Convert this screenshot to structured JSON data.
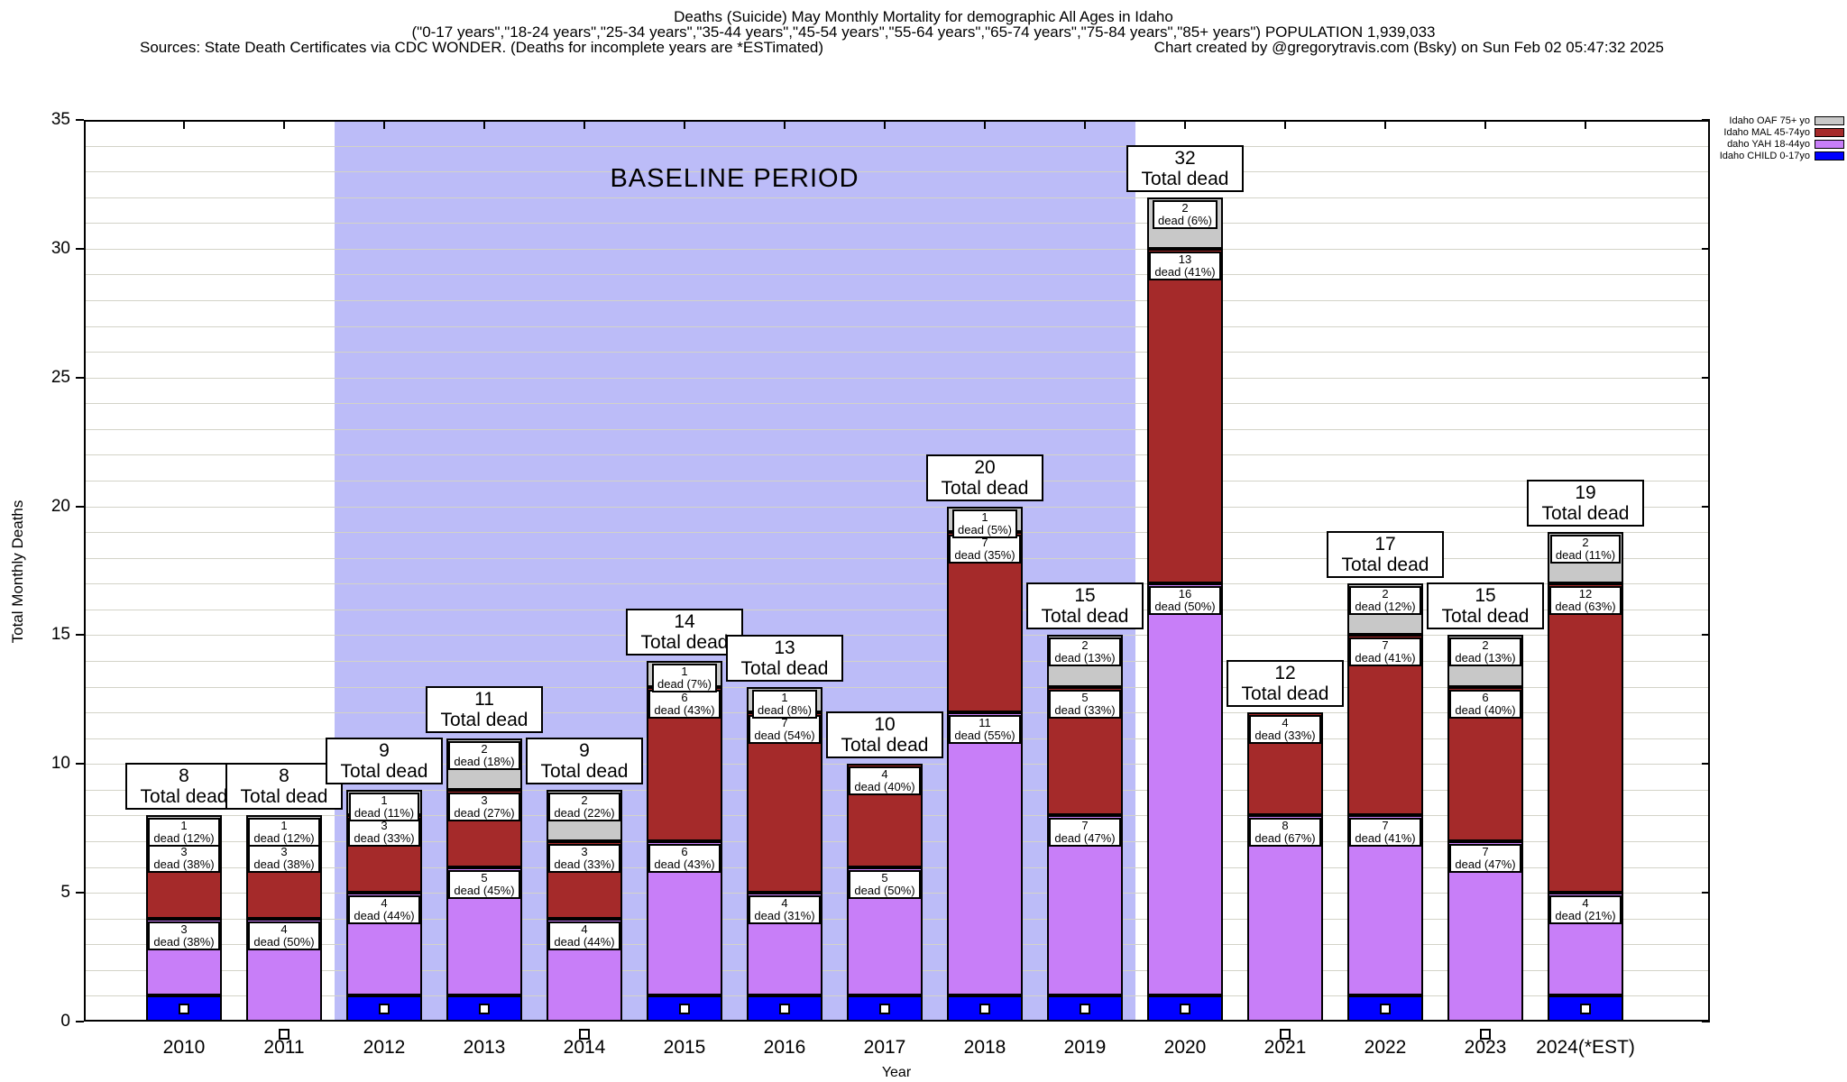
{
  "title": {
    "line1": "Deaths (Suicide) May Monthly Mortality for demographic All Ages in Idaho",
    "line2": "(\"0-17 years\",\"18-24 years\",\"25-34 years\",\"35-44 years\",\"45-54 years\",\"55-64 years\",\"65-74 years\",\"75-84 years\",\"85+ years\") POPULATION 1,939,033",
    "sources": "Sources: State Death Certificates via CDC WONDER. (Deaths for incomplete years are *ESTimated)",
    "credit": "Chart created by @gregorytravis.com (Bsky) on Sun Feb 02 05:47:32 2025"
  },
  "legend": {
    "items": [
      {
        "label": "Idaho OAF 75+ yo",
        "color": "#c8c8c8"
      },
      {
        "label": "Idaho MAL 45-74yo",
        "color": "#a52a2a"
      },
      {
        "label": "daho YAH 18-44yo",
        "color": "#c87ef8"
      },
      {
        "label": "Idaho CHILD 0-17yo",
        "color": "#0000ff"
      }
    ]
  },
  "baseline": {
    "label": "BASELINE PERIOD",
    "color": "#bcbcf8",
    "from": "2012",
    "to": "2019"
  },
  "chart_data": {
    "type": "bar",
    "stacked": true,
    "title": "Deaths (Suicide) May Monthly Mortality for demographic All Ages in Idaho",
    "xlabel": "Year",
    "ylabel": "Total Monthly Deaths",
    "ylim": [
      0,
      35
    ],
    "ytick_interval": 5,
    "yticks": [
      0,
      5,
      10,
      15,
      20,
      25,
      30,
      35
    ],
    "grid": "horizontal-minor-every-1",
    "legend_position": "top-right-outside",
    "categories": [
      "2010",
      "2011",
      "2012",
      "2013",
      "2014",
      "2015",
      "2016",
      "2017",
      "2018",
      "2019",
      "2020",
      "2021",
      "2022",
      "2023",
      "2024(*EST)"
    ],
    "totals": [
      8,
      8,
      9,
      11,
      9,
      14,
      13,
      10,
      20,
      15,
      32,
      12,
      17,
      15,
      19
    ],
    "total_label_suffix": "Total dead",
    "segment_label_word": "dead",
    "series": [
      {
        "name": "Idaho CHILD 0-17yo",
        "color": "#0000ff",
        "show_labels": false,
        "marker": "white-square",
        "values": [
          1,
          0,
          1,
          1,
          0,
          1,
          1,
          1,
          1,
          1,
          1,
          0,
          1,
          0,
          1
        ],
        "pcts": [
          null,
          null,
          null,
          null,
          null,
          null,
          null,
          null,
          null,
          null,
          null,
          null,
          null,
          null,
          null
        ]
      },
      {
        "name": "daho YAH 18-44yo",
        "color": "#c87ef8",
        "show_labels": true,
        "values": [
          3,
          4,
          4,
          5,
          4,
          6,
          4,
          5,
          11,
          7,
          16,
          8,
          7,
          7,
          4
        ],
        "pcts": [
          "38%",
          "50%",
          "44%",
          "45%",
          "44%",
          "43%",
          "31%",
          "50%",
          "55%",
          "47%",
          "50%",
          "67%",
          "41%",
          "47%",
          "21%"
        ]
      },
      {
        "name": "Idaho MAL 45-74yo",
        "color": "#a52a2a",
        "show_labels": true,
        "values": [
          3,
          3,
          3,
          3,
          3,
          6,
          7,
          4,
          7,
          5,
          13,
          4,
          7,
          6,
          12
        ],
        "pcts": [
          "38%",
          "38%",
          "33%",
          "27%",
          "33%",
          "43%",
          "54%",
          "40%",
          "35%",
          "33%",
          "41%",
          "33%",
          "41%",
          "40%",
          "63%"
        ]
      },
      {
        "name": "Idaho OAF 75+ yo",
        "color": "#c8c8c8",
        "show_labels": true,
        "values": [
          1,
          1,
          1,
          2,
          2,
          1,
          1,
          0,
          1,
          2,
          2,
          0,
          2,
          2,
          2
        ],
        "pcts": [
          "12%",
          "12%",
          "11%",
          "18%",
          "22%",
          "7%",
          "8%",
          null,
          "5%",
          "13%",
          "6%",
          null,
          "12%",
          "13%",
          "11%"
        ]
      }
    ],
    "baseline_span_categories": [
      "2012",
      "2019"
    ]
  }
}
